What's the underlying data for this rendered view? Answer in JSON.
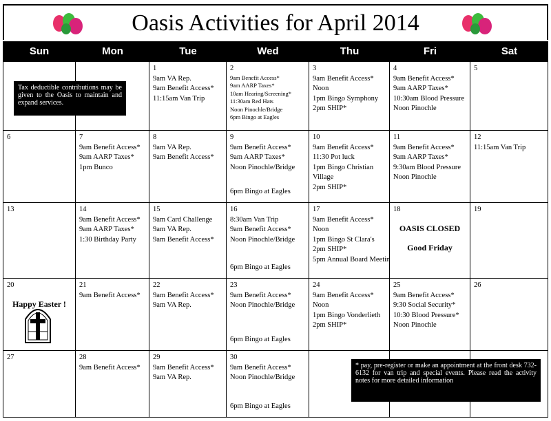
{
  "title": "Oasis Activities for April 2014",
  "weekdays": [
    "Sun",
    "Mon",
    "Tue",
    "Wed",
    "Thu",
    "Fri",
    "Sat"
  ],
  "weeks": [
    [
      null,
      null,
      {
        "day": 1,
        "lines": [
          "9am VA Rep.",
          "9am Benefit Access*",
          "11:15am Van Trip"
        ]
      },
      {
        "day": 2,
        "small": true,
        "lines": [
          "9am Benefit Access*",
          "9am AARP Taxes*",
          "10am Hearing/Screening*",
          "11:30am Red Hats",
          "Noon  Pinochle/Bridge",
          "6pm  Bingo at Eagles"
        ]
      },
      {
        "day": 3,
        "lines": [
          "9am Benefit Access*",
          "Noon",
          "1pm Bingo Symphony",
          "2pm SHIP*"
        ]
      },
      {
        "day": 4,
        "lines": [
          "9am Benefit Access*",
          "9am AARP Taxes*",
          "10:30am Blood Pressure",
          "Noon Pinochle"
        ]
      },
      {
        "day": 5
      }
    ],
    [
      {
        "day": 6
      },
      {
        "day": 7,
        "lines": [
          "9am Benefit Access*",
          "9am AARP Taxes*",
          "1pm Bunco"
        ]
      },
      {
        "day": 8,
        "lines": [
          "9am VA Rep.",
          "9am Benefit Access*"
        ]
      },
      {
        "day": 9,
        "lines": [
          "9am Benefit Access*",
          "9am AARP Taxes*",
          "Noon  Pinochle/Bridge"
        ],
        "later": [
          "6pm Bingo at Eagles"
        ]
      },
      {
        "day": 10,
        "lines": [
          "9am Benefit Access*",
          "11:30 Pot luck",
          "1pm Bingo Christian",
          "Village",
          "2pm SHIP*"
        ]
      },
      {
        "day": 11,
        "lines": [
          "9am Benefit Access*",
          "9am AARP Taxes*",
          "9:30am Blood Pressure",
          "Noon Pinochle"
        ]
      },
      {
        "day": 12,
        "lines": [
          "11:15am Van Trip"
        ]
      }
    ],
    [
      {
        "day": 13
      },
      {
        "day": 14,
        "lines": [
          "9am Benefit Access*",
          "9am AARP Taxes*",
          "1:30 Birthday Party"
        ]
      },
      {
        "day": 15,
        "lines": [
          "9am Card Challenge",
          "9am VA Rep.",
          "9am Benefit Access*"
        ]
      },
      {
        "day": 16,
        "lines": [
          "8:30am Van Trip",
          "9am Benefit Access*",
          "Noon  Pinochle/Bridge"
        ],
        "later": [
          "6pm Bingo at Eagles"
        ]
      },
      {
        "day": 17,
        "lines": [
          "9am Benefit Access*",
          "Noon",
          "1pm Bingo  St Clara's",
          "2pm SHIP*",
          "5pm Annual Board Meeting"
        ]
      },
      {
        "day": 18,
        "highlight": [
          "OASIS CLOSED",
          "Good  Friday"
        ]
      },
      {
        "day": 19
      }
    ],
    [
      {
        "day": 20,
        "highlight": [
          "Happy Easter !"
        ]
      },
      {
        "day": 21,
        "lines": [
          "9am Benefit Access*"
        ]
      },
      {
        "day": 22,
        "lines": [
          "9am Benefit Access*",
          "9am VA Rep."
        ]
      },
      {
        "day": 23,
        "lines": [
          "9am Benefit Access*",
          "Noon  Pinochle/Bridge"
        ],
        "later": [
          "6pm Bingo at Eagles"
        ]
      },
      {
        "day": 24,
        "lines": [
          "9am Benefit Access*",
          "Noon",
          "1pm Bingo  Vonderlieth",
          "2pm SHIP*"
        ]
      },
      {
        "day": 25,
        "lines": [
          "9am Benefit Access*",
          "9:30 Social Security*",
          "10:30 Blood Pressure*",
          "Noon Pinochle"
        ]
      },
      {
        "day": 26
      }
    ],
    [
      {
        "day": 27
      },
      {
        "day": 28,
        "lines": [
          "9am Benefit Access*"
        ]
      },
      {
        "day": 29,
        "lines": [
          "9am Benefit Access*",
          "9am VA Rep."
        ]
      },
      {
        "day": 30,
        "lines": [
          "9am Benefit Access*",
          "Noon Pinochle/Bridge"
        ],
        "later": [
          "6pm Bingo at Eagles"
        ]
      },
      null,
      null,
      null
    ]
  ],
  "tax_note": "Tax deductible contributions may be given to the Oasis to maintain and expand  services.",
  "footnote": "*  pay, pre-register or make an appointment at the front desk 732-6132 for van trip and special events.  Please read the activity notes for more detailed    information"
}
